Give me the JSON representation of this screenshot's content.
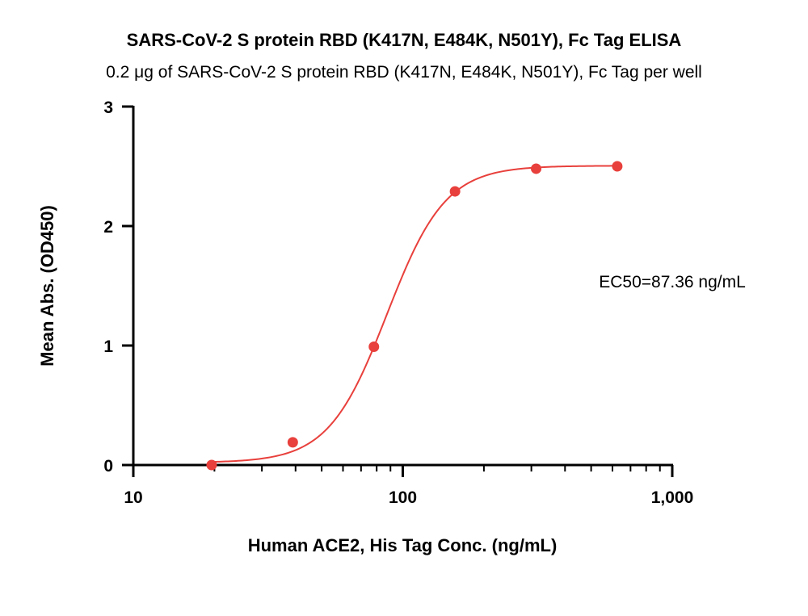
{
  "chart_data": {
    "type": "scatter",
    "title": "SARS-CoV-2 S protein RBD (K417N, E484K, N501Y), Fc Tag ELISA",
    "subtitle": "0.2 μg of SARS-CoV-2 S protein RBD (K417N, E484K, N501Y), Fc Tag per well",
    "xlabel": "Human ACE2, His Tag Conc. (ng/mL)",
    "ylabel": "Mean Abs. (OD450)",
    "x_scale": "log",
    "xlim": [
      10,
      1000
    ],
    "ylim": [
      0,
      3
    ],
    "x_ticks": [
      10,
      100,
      1000
    ],
    "x_tick_labels": [
      "10",
      "100",
      "1,000"
    ],
    "y_ticks": [
      0,
      1,
      2,
      3
    ],
    "y_tick_labels": [
      "0",
      "1",
      "2",
      "3"
    ],
    "grid": false,
    "series": [
      {
        "x": [
          19.53,
          39.06,
          78.13,
          156.25,
          312.5,
          625
        ],
        "y": [
          0.0,
          0.19,
          0.99,
          2.29,
          2.48,
          2.5
        ],
        "color": "#e8403c",
        "fit": "4PL sigmoidal"
      }
    ],
    "fit_params": {
      "bottom": 0.02,
      "top": 2.505,
      "ec50": 87.36,
      "hill": 4.0
    },
    "annotation": "EC50=87.36 ng/mL"
  }
}
